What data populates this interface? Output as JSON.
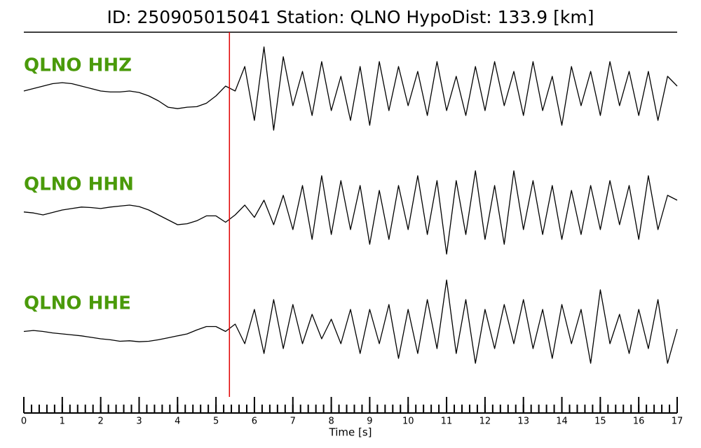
{
  "chart_data": {
    "type": "line",
    "title": "ID: 250905015041   Station: QLNO   HypoDist:   133.9 [km]",
    "xlabel": "Time [s]",
    "xlim": [
      0,
      17
    ],
    "xticks": [
      0,
      1,
      2,
      3,
      4,
      5,
      6,
      7,
      8,
      9,
      10,
      11,
      12,
      13,
      14,
      15,
      16,
      17
    ],
    "minor_tick_step": 0.2,
    "pick": {
      "x": 5.35,
      "color": "#e00000"
    },
    "label_color": "#4a9a0a",
    "x": [
      0,
      0.25,
      0.5,
      0.75,
      1,
      1.25,
      1.5,
      1.75,
      2,
      2.25,
      2.5,
      2.75,
      3,
      3.25,
      3.5,
      3.75,
      4,
      4.25,
      4.5,
      4.75,
      5,
      5.25,
      5.5,
      5.75,
      6,
      6.25,
      6.5,
      6.75,
      7,
      7.25,
      7.5,
      7.75,
      8,
      8.25,
      8.5,
      8.75,
      9,
      9.25,
      9.5,
      9.75,
      10,
      10.25,
      10.5,
      10.75,
      11,
      11.25,
      11.5,
      11.75,
      12,
      12.25,
      12.5,
      12.75,
      13,
      13.25,
      13.5,
      13.75,
      14,
      14.25,
      14.5,
      14.75,
      15,
      15.25,
      15.5,
      15.75,
      16,
      16.25,
      16.5,
      16.75,
      17
    ],
    "series": [
      {
        "name": "QLNO HHZ",
        "color": "#000000",
        "values": [
          0,
          0.05,
          0.1,
          0.15,
          0.17,
          0.15,
          0.1,
          0.05,
          0,
          -0.02,
          -0.02,
          0,
          -0.03,
          -0.1,
          -0.2,
          -0.33,
          -0.36,
          -0.33,
          -0.32,
          -0.25,
          -0.1,
          0.1,
          0.0,
          0.5,
          -0.6,
          0.9,
          -0.8,
          0.7,
          -0.3,
          0.4,
          -0.5,
          0.6,
          -0.4,
          0.3,
          -0.6,
          0.5,
          -0.7,
          0.6,
          -0.4,
          0.5,
          -0.3,
          0.4,
          -0.5,
          0.6,
          -0.4,
          0.3,
          -0.5,
          0.5,
          -0.4,
          0.6,
          -0.3,
          0.4,
          -0.5,
          0.6,
          -0.4,
          0.3,
          -0.7,
          0.5,
          -0.3,
          0.4,
          -0.5,
          0.6,
          -0.3,
          0.4,
          -0.5,
          0.4,
          -0.6,
          0.3,
          0.1
        ]
      },
      {
        "name": "QLNO HHN",
        "color": "#000000",
        "values": [
          -0.04,
          -0.06,
          -0.1,
          -0.05,
          0,
          0.03,
          0.06,
          0.05,
          0.03,
          0.06,
          0.08,
          0.1,
          0.07,
          0,
          -0.1,
          -0.2,
          -0.3,
          -0.28,
          -0.22,
          -0.12,
          -0.12,
          -0.25,
          -0.1,
          0.1,
          -0.15,
          0.2,
          -0.3,
          0.3,
          -0.4,
          0.5,
          -0.6,
          0.7,
          -0.5,
          0.6,
          -0.4,
          0.5,
          -0.7,
          0.4,
          -0.6,
          0.5,
          -0.4,
          0.7,
          -0.5,
          0.6,
          -0.9,
          0.6,
          -0.5,
          0.8,
          -0.6,
          0.5,
          -0.7,
          0.8,
          -0.4,
          0.6,
          -0.5,
          0.5,
          -0.6,
          0.4,
          -0.5,
          0.5,
          -0.4,
          0.6,
          -0.3,
          0.5,
          -0.6,
          0.7,
          -0.4,
          0.3,
          0.2
        ]
      },
      {
        "name": "QLNO HHE",
        "color": "#000000",
        "values": [
          -0.05,
          -0.03,
          -0.05,
          -0.08,
          -0.1,
          -0.12,
          -0.14,
          -0.17,
          -0.2,
          -0.22,
          -0.25,
          -0.24,
          -0.26,
          -0.25,
          -0.22,
          -0.18,
          -0.14,
          -0.1,
          -0.02,
          0.05,
          0.05,
          -0.05,
          0.1,
          -0.3,
          0.4,
          -0.5,
          0.6,
          -0.4,
          0.5,
          -0.3,
          0.3,
          -0.2,
          0.2,
          -0.3,
          0.4,
          -0.5,
          0.4,
          -0.3,
          0.5,
          -0.6,
          0.4,
          -0.5,
          0.6,
          -0.4,
          1.0,
          -0.5,
          0.6,
          -0.7,
          0.4,
          -0.4,
          0.5,
          -0.3,
          0.6,
          -0.4,
          0.4,
          -0.6,
          0.5,
          -0.3,
          0.4,
          -0.7,
          0.8,
          -0.3,
          0.3,
          -0.5,
          0.4,
          -0.4,
          0.6,
          -0.7,
          0.0
        ]
      }
    ]
  }
}
